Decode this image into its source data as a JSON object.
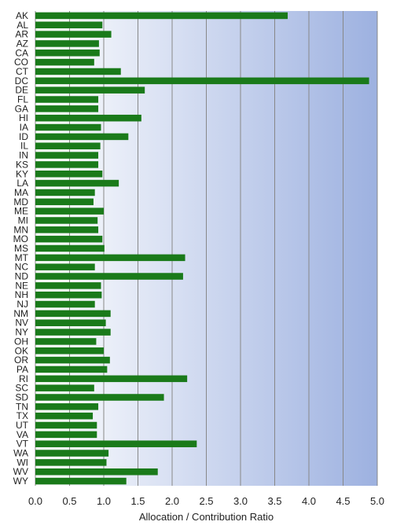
{
  "chart_data": {
    "type": "bar",
    "orientation": "horizontal",
    "xlabel": "Allocation / Contribution Ratio",
    "xlim": [
      0.0,
      5.0
    ],
    "xticks": [
      "0.0",
      "0.5",
      "1.0",
      "1.5",
      "2.0",
      "2.5",
      "3.0",
      "3.5",
      "4.0",
      "4.5",
      "5.0"
    ],
    "grid": "vertical",
    "categories": [
      "AK",
      "AL",
      "AR",
      "AZ",
      "CA",
      "CO",
      "CT",
      "DC",
      "DE",
      "FL",
      "GA",
      "HI",
      "IA",
      "ID",
      "IL",
      "IN",
      "KS",
      "KY",
      "LA",
      "MA",
      "MD",
      "ME",
      "MI",
      "MN",
      "MO",
      "MS",
      "MT",
      "NC",
      "ND",
      "NE",
      "NH",
      "NJ",
      "NM",
      "NV",
      "NY",
      "OH",
      "OK",
      "OR",
      "PA",
      "RI",
      "SC",
      "SD",
      "TN",
      "TX",
      "UT",
      "VA",
      "VT",
      "WA",
      "WI",
      "WV",
      "WY"
    ],
    "values": [
      3.69,
      0.98,
      1.11,
      0.93,
      0.94,
      0.86,
      1.25,
      4.88,
      1.6,
      0.92,
      0.92,
      1.55,
      0.96,
      1.36,
      0.95,
      0.92,
      0.92,
      0.98,
      1.22,
      0.87,
      0.85,
      1.0,
      0.91,
      0.92,
      0.98,
      1.01,
      2.19,
      0.87,
      2.16,
      0.96,
      0.97,
      0.87,
      1.1,
      1.03,
      1.1,
      0.89,
      1.0,
      1.09,
      1.05,
      2.22,
      0.86,
      1.88,
      0.92,
      0.84,
      0.9,
      0.9,
      2.36,
      1.07,
      1.04,
      1.79,
      1.33
    ],
    "bar_color": "#1a7a1a",
    "background_gradient": [
      "#ffffff",
      "#9db1e0"
    ],
    "grid_color": "#888888"
  }
}
